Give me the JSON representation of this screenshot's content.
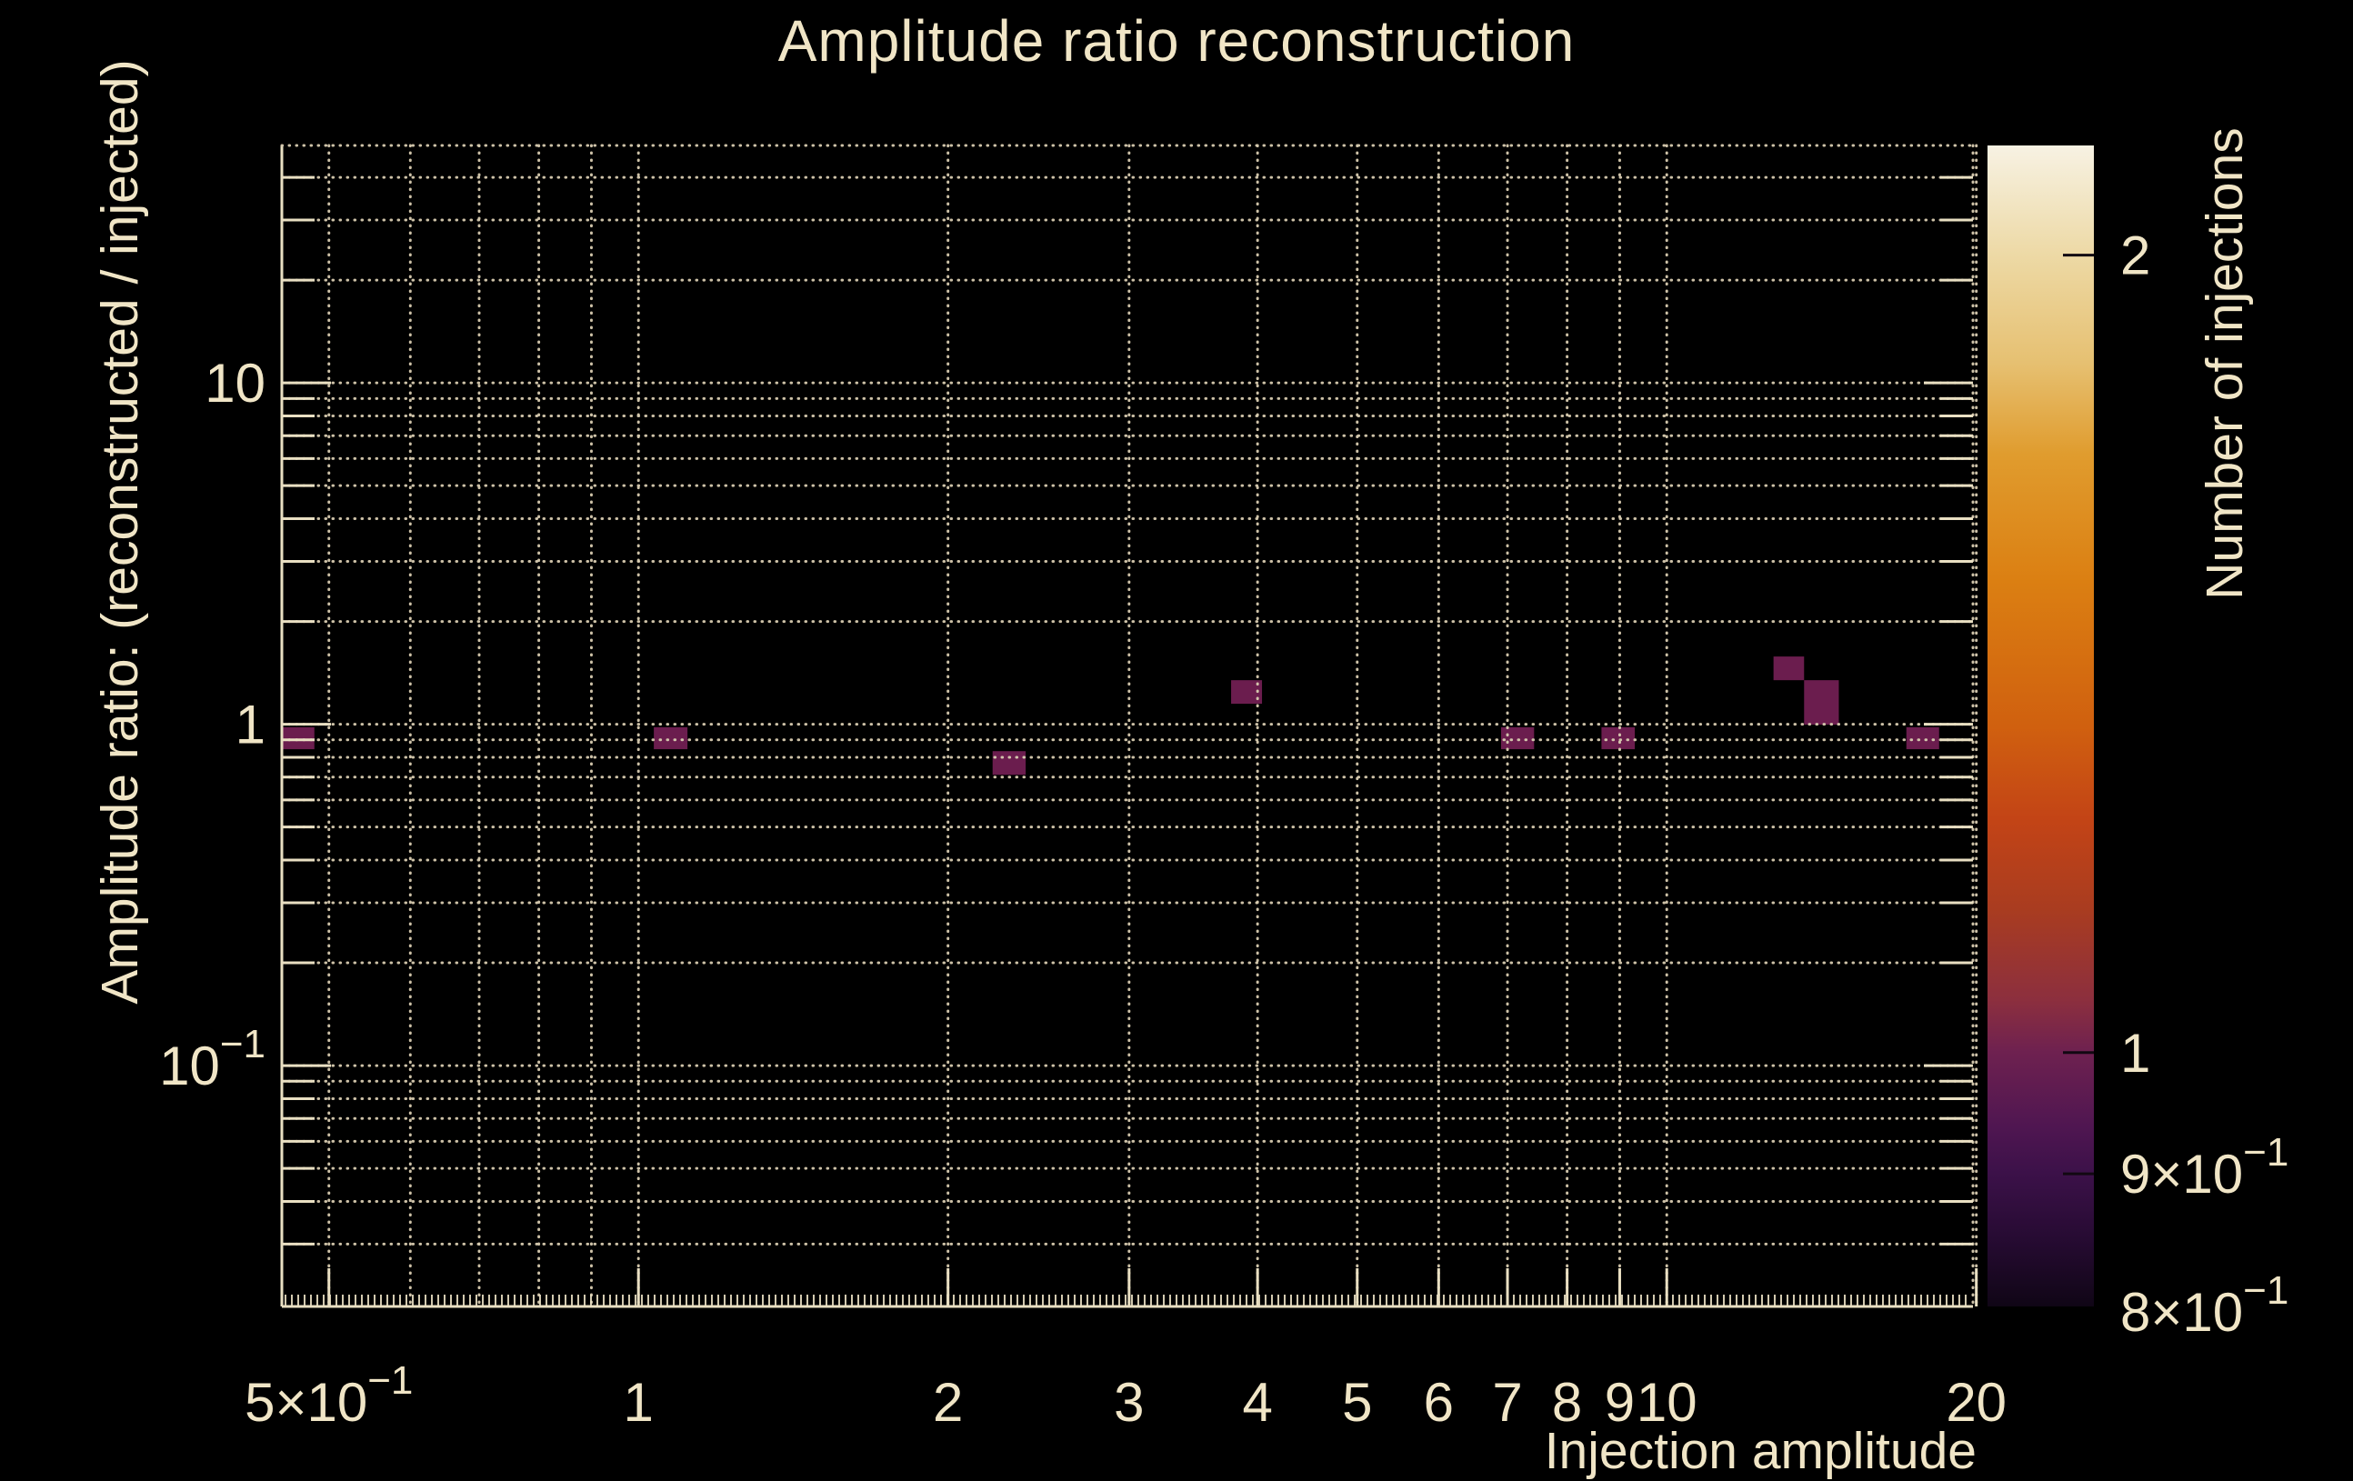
{
  "title": "Amplitude ratio reconstruction",
  "colors": {
    "background": "#000000",
    "text": "#f0e5c6",
    "frame": "#e9dfc2",
    "grid": "#d8ccb0",
    "cell": "#6b1d4e",
    "colorbar_tick": "#120812"
  },
  "chart_data": {
    "type": "heatmap",
    "title": "Amplitude ratio reconstruction",
    "xlabel": "Injection amplitude",
    "ylabel": "Amplitude ratio: (reconstructed / injected)",
    "zlabel": "Number of injections",
    "x_scale": "log",
    "y_scale": "log",
    "z_scale": "log",
    "xlim": [
      0.45,
      19.85
    ],
    "ylim": [
      0.0197,
      49.6
    ],
    "zlim": [
      0.802,
      2.2
    ],
    "grid": true,
    "x_ticks": [
      {
        "v": 0.5,
        "label": "5×10^−1"
      },
      {
        "v": 1,
        "label": "1"
      },
      {
        "v": 2,
        "label": "2"
      },
      {
        "v": 3,
        "label": "3"
      },
      {
        "v": 4,
        "label": "4"
      },
      {
        "v": 5,
        "label": "5"
      },
      {
        "v": 6,
        "label": "6"
      },
      {
        "v": 7,
        "label": "7"
      },
      {
        "v": 8,
        "label": "8"
      },
      {
        "v": 9,
        "label": "9"
      },
      {
        "v": 10,
        "label": "10"
      },
      {
        "v": 20,
        "label": "20"
      }
    ],
    "y_ticks": [
      {
        "v": 10,
        "label": "10"
      },
      {
        "v": 1,
        "label": "1"
      },
      {
        "v": 0.1,
        "label": "10^−1"
      }
    ],
    "z_ticks": [
      {
        "v": 2,
        "label": "2",
        "tick": true
      },
      {
        "v": 1,
        "label": "1",
        "tick": true
      },
      {
        "v": 0.9,
        "label": "9×10^−1",
        "tick": true
      },
      {
        "v": 0.8,
        "label": "8×10^−1",
        "tick": false
      }
    ],
    "x_gridlines": [
      0.5,
      0.6,
      0.7,
      0.8,
      0.9,
      1,
      2,
      3,
      4,
      5,
      6,
      7,
      8,
      9,
      10,
      20
    ],
    "y_gridlines": [
      0.03,
      0.04,
      0.05,
      0.06,
      0.07,
      0.08,
      0.09,
      0.1,
      0.2,
      0.3,
      0.4,
      0.5,
      0.6,
      0.7,
      0.8,
      0.9,
      1,
      2,
      3,
      4,
      5,
      6,
      7,
      8,
      9,
      10,
      20,
      30,
      40
    ],
    "cells": [
      {
        "x": [
          0.45,
          0.484
        ],
        "y": [
          0.845,
          0.98
        ],
        "value": 1
      },
      {
        "x": [
          1.035,
          1.116
        ],
        "y": [
          0.845,
          0.98
        ],
        "value": 1
      },
      {
        "x": [
          2.21,
          2.38
        ],
        "y": [
          0.711,
          0.834
        ],
        "value": 1
      },
      {
        "x": [
          3.77,
          4.04
        ],
        "y": [
          1.148,
          1.346
        ],
        "value": 1
      },
      {
        "x": [
          6.9,
          7.43
        ],
        "y": [
          0.845,
          0.98
        ],
        "value": 1
      },
      {
        "x": [
          8.64,
          9.31
        ],
        "y": [
          0.845,
          0.98
        ],
        "value": 1
      },
      {
        "x": [
          12.7,
          13.6
        ],
        "y": [
          1.346,
          1.579
        ],
        "value": 1
      },
      {
        "x": [
          13.6,
          14.7
        ],
        "y": [
          0.997,
          1.346
        ],
        "value": 1
      },
      {
        "x": [
          17.1,
          18.4
        ],
        "y": [
          0.845,
          0.98
        ],
        "value": 1
      }
    ],
    "colorbar_stops": [
      {
        "t": 0.0,
        "color": "#f7f2e3"
      },
      {
        "t": 0.095,
        "color": "#edd9a5"
      },
      {
        "t": 0.188,
        "color": "#e6c071"
      },
      {
        "t": 0.266,
        "color": "#e09c2e"
      },
      {
        "t": 0.376,
        "color": "#db7f12"
      },
      {
        "t": 0.501,
        "color": "#d0600f"
      },
      {
        "t": 0.58,
        "color": "#c34416"
      },
      {
        "t": 0.658,
        "color": "#a93c20"
      },
      {
        "t": 0.736,
        "color": "#8c2f3e"
      },
      {
        "t": 0.781,
        "color": "#6e2150"
      },
      {
        "t": 0.846,
        "color": "#4f1651"
      },
      {
        "t": 0.885,
        "color": "#3c1149"
      },
      {
        "t": 0.94,
        "color": "#270b33"
      },
      {
        "t": 1.0,
        "color": "#100616"
      }
    ]
  }
}
